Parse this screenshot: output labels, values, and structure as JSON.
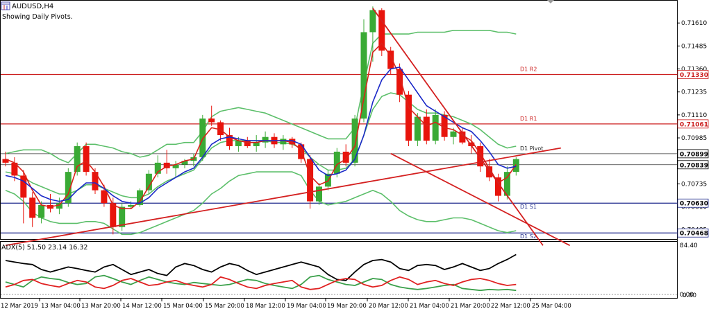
{
  "window": {
    "symbol_title": "AUDUSD,H4",
    "subtitle": "Showing Daily Pivots."
  },
  "icons": {
    "chart": "chart-window-icon"
  },
  "colors": {
    "bull": "#3aaa35",
    "bear": "#e8140c",
    "pivot_red": "#cc1e1e",
    "pivot_blue": "#1f2a8c",
    "bollinger": "#5cbf6a",
    "ma_fast": "#d9221a",
    "ma_slow": "#1a28c8",
    "trend": "#d42020",
    "adx": "#000000",
    "di_plus": "#3aa04a",
    "di_minus": "#e02020"
  },
  "price_axis": {
    "ticks": [
      0.7161,
      0.71485,
      0.7136,
      0.71235,
      0.7111,
      0.70985,
      0.70735,
      0.7061,
      0.70485
    ],
    "tick_labels": [
      "0.71610",
      "0.71485",
      "0.71360",
      "0.71235",
      "0.71110",
      "0.70985",
      "0.70735",
      "0.70610",
      "0.70485"
    ],
    "min": 0.7045,
    "max": 0.7172
  },
  "pivot_levels": [
    {
      "name": "D1 R2",
      "value": 0.7133,
      "label": "0.71330",
      "kind": "resistance"
    },
    {
      "name": "D1 R1",
      "value": 0.71061,
      "label": "0.71061",
      "kind": "resistance"
    },
    {
      "name": "D1 Pivot",
      "value": 0.70899,
      "label": "0.70899",
      "kind": "pivot"
    },
    {
      "name": "",
      "value": 0.70839,
      "label": "0.70839",
      "kind": "current"
    },
    {
      "name": "D1 S1",
      "value": 0.7063,
      "label": "0.70630",
      "kind": "support"
    },
    {
      "name": "D1 S2",
      "value": 0.70468,
      "label": "0.70468",
      "kind": "support"
    }
  ],
  "chart_data": [
    {
      "type": "candlestick",
      "title": "AUDUSD,H4",
      "subtitle": "Showing Daily Pivots.",
      "x_labels": [
        "12 Mar 2019",
        "13 Mar 04:00",
        "13 Mar 20:00",
        "14 Mar 12:00",
        "15 Mar 04:00",
        "15 Mar 20:00",
        "18 Mar 12:00",
        "19 Mar 04:00",
        "19 Mar 20:00",
        "20 Mar 12:00",
        "21 Mar 04:00",
        "21 Mar 20:00",
        "22 Mar 12:00",
        "25 Mar 04:00"
      ],
      "ylim": [
        0.7045,
        0.7172
      ],
      "candles": [
        {
          "o": 0.7087,
          "h": 0.7091,
          "l": 0.7083,
          "c": 0.7085
        },
        {
          "o": 0.7085,
          "h": 0.7088,
          "l": 0.7075,
          "c": 0.7078
        },
        {
          "o": 0.7078,
          "h": 0.7081,
          "l": 0.7052,
          "c": 0.7066
        },
        {
          "o": 0.7066,
          "h": 0.7069,
          "l": 0.705,
          "c": 0.7055
        },
        {
          "o": 0.7055,
          "h": 0.7064,
          "l": 0.7052,
          "c": 0.7062
        },
        {
          "o": 0.7062,
          "h": 0.7068,
          "l": 0.7058,
          "c": 0.706
        },
        {
          "o": 0.706,
          "h": 0.7066,
          "l": 0.7057,
          "c": 0.7063
        },
        {
          "o": 0.7063,
          "h": 0.7082,
          "l": 0.7061,
          "c": 0.708
        },
        {
          "o": 0.708,
          "h": 0.7096,
          "l": 0.7078,
          "c": 0.7094
        },
        {
          "o": 0.7094,
          "h": 0.7096,
          "l": 0.7078,
          "c": 0.708
        },
        {
          "o": 0.708,
          "h": 0.7082,
          "l": 0.7068,
          "c": 0.707
        },
        {
          "o": 0.707,
          "h": 0.7073,
          "l": 0.7061,
          "c": 0.7063
        },
        {
          "o": 0.7063,
          "h": 0.7066,
          "l": 0.7046,
          "c": 0.705
        },
        {
          "o": 0.705,
          "h": 0.7063,
          "l": 0.7048,
          "c": 0.7061
        },
        {
          "o": 0.7061,
          "h": 0.7064,
          "l": 0.706,
          "c": 0.7062
        },
        {
          "o": 0.7062,
          "h": 0.7071,
          "l": 0.7061,
          "c": 0.707
        },
        {
          "o": 0.707,
          "h": 0.7081,
          "l": 0.7068,
          "c": 0.7079
        },
        {
          "o": 0.7079,
          "h": 0.7089,
          "l": 0.7077,
          "c": 0.7085
        },
        {
          "o": 0.7085,
          "h": 0.7092,
          "l": 0.7079,
          "c": 0.7082
        },
        {
          "o": 0.7082,
          "h": 0.7086,
          "l": 0.7077,
          "c": 0.7084
        },
        {
          "o": 0.7084,
          "h": 0.7087,
          "l": 0.7082,
          "c": 0.7086
        },
        {
          "o": 0.7086,
          "h": 0.709,
          "l": 0.7083,
          "c": 0.7088
        },
        {
          "o": 0.7088,
          "h": 0.7111,
          "l": 0.7086,
          "c": 0.7109
        },
        {
          "o": 0.7109,
          "h": 0.7116,
          "l": 0.7105,
          "c": 0.7107
        },
        {
          "o": 0.7107,
          "h": 0.7108,
          "l": 0.7097,
          "c": 0.71
        },
        {
          "o": 0.71,
          "h": 0.7104,
          "l": 0.7092,
          "c": 0.7094
        },
        {
          "o": 0.7094,
          "h": 0.7099,
          "l": 0.7091,
          "c": 0.7097
        },
        {
          "o": 0.7097,
          "h": 0.7099,
          "l": 0.7093,
          "c": 0.7094
        },
        {
          "o": 0.7094,
          "h": 0.71,
          "l": 0.7091,
          "c": 0.7096
        },
        {
          "o": 0.7096,
          "h": 0.7102,
          "l": 0.7093,
          "c": 0.7099
        },
        {
          "o": 0.7099,
          "h": 0.7101,
          "l": 0.7093,
          "c": 0.7095
        },
        {
          "o": 0.7095,
          "h": 0.71,
          "l": 0.7092,
          "c": 0.7098
        },
        {
          "o": 0.7098,
          "h": 0.7099,
          "l": 0.7093,
          "c": 0.7095
        },
        {
          "o": 0.7095,
          "h": 0.7096,
          "l": 0.7085,
          "c": 0.7087
        },
        {
          "o": 0.7087,
          "h": 0.7089,
          "l": 0.706,
          "c": 0.7064
        },
        {
          "o": 0.7064,
          "h": 0.7074,
          "l": 0.7062,
          "c": 0.7072
        },
        {
          "o": 0.7072,
          "h": 0.7081,
          "l": 0.707,
          "c": 0.7079
        },
        {
          "o": 0.7079,
          "h": 0.7093,
          "l": 0.7077,
          "c": 0.7091
        },
        {
          "o": 0.7091,
          "h": 0.7095,
          "l": 0.7083,
          "c": 0.7085
        },
        {
          "o": 0.7085,
          "h": 0.7111,
          "l": 0.7083,
          "c": 0.7109
        },
        {
          "o": 0.7109,
          "h": 0.7163,
          "l": 0.7107,
          "c": 0.7156
        },
        {
          "o": 0.7156,
          "h": 0.717,
          "l": 0.714,
          "c": 0.7168
        },
        {
          "o": 0.7168,
          "h": 0.7169,
          "l": 0.7143,
          "c": 0.7146
        },
        {
          "o": 0.7146,
          "h": 0.7148,
          "l": 0.7133,
          "c": 0.7136
        },
        {
          "o": 0.7136,
          "h": 0.7139,
          "l": 0.7118,
          "c": 0.7122
        },
        {
          "o": 0.7122,
          "h": 0.7124,
          "l": 0.7094,
          "c": 0.7097
        },
        {
          "o": 0.7097,
          "h": 0.7112,
          "l": 0.7094,
          "c": 0.711
        },
        {
          "o": 0.711,
          "h": 0.7114,
          "l": 0.7095,
          "c": 0.7097
        },
        {
          "o": 0.7097,
          "h": 0.7114,
          "l": 0.7095,
          "c": 0.7111
        },
        {
          "o": 0.7111,
          "h": 0.7113,
          "l": 0.7097,
          "c": 0.7099
        },
        {
          "o": 0.7099,
          "h": 0.7104,
          "l": 0.7095,
          "c": 0.7102
        },
        {
          "o": 0.7102,
          "h": 0.7104,
          "l": 0.7095,
          "c": 0.7096
        },
        {
          "o": 0.7096,
          "h": 0.71,
          "l": 0.709,
          "c": 0.7094
        },
        {
          "o": 0.7094,
          "h": 0.7096,
          "l": 0.708,
          "c": 0.7083
        },
        {
          "o": 0.7083,
          "h": 0.7087,
          "l": 0.7075,
          "c": 0.7077
        },
        {
          "o": 0.7077,
          "h": 0.7079,
          "l": 0.7064,
          "c": 0.7067
        },
        {
          "o": 0.7067,
          "h": 0.7083,
          "l": 0.7065,
          "c": 0.708
        },
        {
          "o": 0.708,
          "h": 0.7088,
          "l": 0.7078,
          "c": 0.7087
        }
      ],
      "moving_averages": [
        {
          "name": "fast",
          "values": [
            0.7087,
            0.7085,
            0.708,
            0.707,
            0.7062,
            0.7061,
            0.7062,
            0.7068,
            0.7083,
            0.7086,
            0.708,
            0.7072,
            0.7062,
            0.706,
            0.706,
            0.7064,
            0.7072,
            0.708,
            0.7083,
            0.7084,
            0.7086,
            0.7087,
            0.7098,
            0.7104,
            0.7103,
            0.7099,
            0.7097,
            0.7096,
            0.7096,
            0.7097,
            0.7097,
            0.7097,
            0.7096,
            0.7092,
            0.7078,
            0.7073,
            0.7075,
            0.7084,
            0.7087,
            0.7094,
            0.712,
            0.7145,
            0.715,
            0.7143,
            0.7132,
            0.7115,
            0.711,
            0.7105,
            0.7107,
            0.7104,
            0.7103,
            0.71,
            0.7097,
            0.709,
            0.7082,
            0.7074,
            0.7077,
            0.7084
          ]
        },
        {
          "name": "slow",
          "values": [
            0.7078,
            0.7077,
            0.7075,
            0.7071,
            0.7067,
            0.7065,
            0.7064,
            0.7065,
            0.707,
            0.7074,
            0.7074,
            0.7071,
            0.7067,
            0.7064,
            0.7063,
            0.7063,
            0.7066,
            0.7071,
            0.7074,
            0.7077,
            0.708,
            0.7082,
            0.7088,
            0.7095,
            0.7098,
            0.7099,
            0.7098,
            0.7097,
            0.7097,
            0.7097,
            0.7097,
            0.7097,
            0.7097,
            0.7095,
            0.7088,
            0.7081,
            0.7078,
            0.7079,
            0.7081,
            0.7087,
            0.71,
            0.7118,
            0.713,
            0.7136,
            0.7137,
            0.713,
            0.7123,
            0.7116,
            0.7113,
            0.711,
            0.7107,
            0.7104,
            0.7102,
            0.7097,
            0.7091,
            0.7084,
            0.7082,
            0.7083
          ]
        }
      ],
      "bollinger": {
        "upper": [
          0.709,
          0.7091,
          0.7092,
          0.7092,
          0.7092,
          0.709,
          0.7087,
          0.7085,
          0.709,
          0.7095,
          0.7095,
          0.7094,
          0.7093,
          0.7091,
          0.709,
          0.7088,
          0.7089,
          0.7092,
          0.7095,
          0.7095,
          0.7096,
          0.7096,
          0.7102,
          0.711,
          0.7113,
          0.7114,
          0.7115,
          0.7114,
          0.7113,
          0.7112,
          0.711,
          0.7108,
          0.7106,
          0.7104,
          0.7102,
          0.71,
          0.7098,
          0.7098,
          0.7098,
          0.7104,
          0.7128,
          0.715,
          0.7155,
          0.7155,
          0.7155,
          0.7155,
          0.7156,
          0.7156,
          0.7156,
          0.7156,
          0.7157,
          0.7157,
          0.7157,
          0.7157,
          0.7157,
          0.7156,
          0.7156,
          0.7155
        ],
        "middle": [
          0.708,
          0.7079,
          0.7077,
          0.7074,
          0.7072,
          0.707,
          0.7068,
          0.7068,
          0.707,
          0.7073,
          0.7073,
          0.7071,
          0.7069,
          0.7067,
          0.7066,
          0.7066,
          0.7068,
          0.7072,
          0.7075,
          0.7077,
          0.7079,
          0.7081,
          0.7087,
          0.7093,
          0.7096,
          0.7097,
          0.7097,
          0.7097,
          0.7097,
          0.7097,
          0.7096,
          0.7096,
          0.7095,
          0.7093,
          0.7088,
          0.7084,
          0.7081,
          0.7081,
          0.7082,
          0.7087,
          0.71,
          0.7114,
          0.7121,
          0.7123,
          0.7122,
          0.7118,
          0.7114,
          0.7112,
          0.7112,
          0.7111,
          0.711,
          0.7108,
          0.7106,
          0.7103,
          0.7099,
          0.7095,
          0.7093,
          0.7094
        ],
        "lower": [
          0.707,
          0.7068,
          0.7064,
          0.7058,
          0.7055,
          0.7053,
          0.7052,
          0.7052,
          0.7052,
          0.7053,
          0.7053,
          0.7052,
          0.7049,
          0.7046,
          0.7046,
          0.7047,
          0.7049,
          0.7051,
          0.7053,
          0.7055,
          0.7057,
          0.7059,
          0.7063,
          0.7068,
          0.7071,
          0.7075,
          0.7078,
          0.7079,
          0.708,
          0.708,
          0.708,
          0.708,
          0.708,
          0.7078,
          0.707,
          0.7064,
          0.7062,
          0.7063,
          0.7064,
          0.7066,
          0.7068,
          0.707,
          0.7068,
          0.7064,
          0.7059,
          0.7056,
          0.7054,
          0.7053,
          0.7053,
          0.7054,
          0.7055,
          0.7055,
          0.7054,
          0.7052,
          0.705,
          0.7048,
          0.7047,
          0.7048
        ]
      },
      "trendlines": [
        {
          "from": [
            0,
            0.704
          ],
          "to": [
            62,
            0.7093
          ]
        },
        {
          "from": [
            41,
            0.7169
          ],
          "to": [
            60,
            0.704
          ]
        },
        {
          "from": [
            43,
            0.709
          ],
          "to": [
            63,
            0.704
          ]
        }
      ]
    },
    {
      "type": "line",
      "title": "ADX(5) 51.50 23.14 16.32",
      "ylim": [
        0,
        100
      ],
      "right_labels": [
        "84.40",
        "0.00",
        "0.00"
      ],
      "series": [
        {
          "name": "ADX",
          "values": [
            68,
            65,
            62,
            60,
            50,
            45,
            50,
            55,
            52,
            48,
            45,
            55,
            60,
            50,
            40,
            45,
            50,
            42,
            38,
            55,
            62,
            58,
            50,
            45,
            55,
            62,
            58,
            48,
            40,
            45,
            50,
            55,
            60,
            65,
            60,
            55,
            40,
            30,
            28,
            45,
            60,
            68,
            70,
            65,
            52,
            48,
            58,
            60,
            58,
            50,
            55,
            62,
            55,
            48,
            52,
            62,
            70,
            80
          ]
        },
        {
          "name": "+DI",
          "values": [
            25,
            20,
            15,
            28,
            35,
            32,
            30,
            24,
            20,
            22,
            35,
            38,
            32,
            25,
            20,
            28,
            35,
            30,
            25,
            22,
            20,
            24,
            22,
            20,
            18,
            20,
            25,
            30,
            28,
            22,
            18,
            15,
            12,
            20,
            35,
            38,
            30,
            25,
            20,
            18,
            25,
            32,
            30,
            20,
            15,
            12,
            10,
            12,
            15,
            18,
            20,
            12,
            10,
            8,
            10,
            9,
            10,
            8
          ]
        },
        {
          "name": "-DI",
          "values": [
            15,
            20,
            28,
            30,
            22,
            18,
            15,
            22,
            28,
            25,
            15,
            12,
            18,
            28,
            32,
            25,
            18,
            20,
            25,
            28,
            22,
            18,
            15,
            20,
            35,
            30,
            22,
            15,
            12,
            18,
            22,
            25,
            28,
            15,
            10,
            12,
            20,
            28,
            32,
            30,
            20,
            15,
            18,
            28,
            35,
            30,
            20,
            25,
            28,
            22,
            18,
            25,
            30,
            32,
            28,
            22,
            18,
            20
          ]
        }
      ]
    }
  ]
}
